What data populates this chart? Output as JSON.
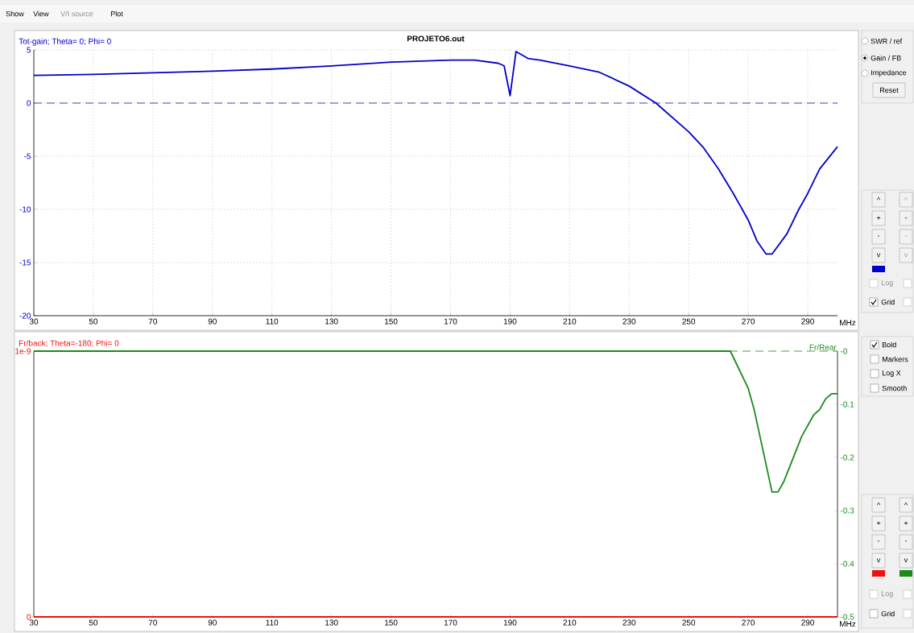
{
  "chart_data": [
    {
      "type": "line",
      "title": "PROJETO6.out",
      "ylabel": "Tot-gain; Theta= 0; Phi= 0",
      "xlabel": "MHz",
      "xlim": [
        30,
        300
      ],
      "xticks": [
        30,
        50,
        70,
        90,
        110,
        130,
        150,
        170,
        190,
        210,
        230,
        250,
        270,
        290
      ],
      "ylim": [
        -20,
        5
      ],
      "yticks": [
        -20,
        -15,
        -10,
        -5,
        0,
        5
      ],
      "grid": true,
      "series": [
        {
          "color": "#0000cc",
          "x": [
            30,
            50,
            70,
            90,
            110,
            130,
            150,
            170,
            178,
            186,
            188,
            190,
            192,
            196,
            200,
            210,
            220,
            230,
            239,
            250,
            255,
            260,
            265,
            270,
            273,
            276,
            278,
            283,
            287,
            290,
            294,
            300
          ],
          "values": [
            2.6,
            2.7,
            2.85,
            3.0,
            3.2,
            3.5,
            3.85,
            4.05,
            4.05,
            3.75,
            3.5,
            0.7,
            4.85,
            4.2,
            4.05,
            3.5,
            2.9,
            1.6,
            0,
            -2.7,
            -4.2,
            -6.2,
            -8.5,
            -11.0,
            -13.0,
            -14.2,
            -14.2,
            -12.3,
            -10.0,
            -8.5,
            -6.2,
            -4.1
          ]
        }
      ],
      "ref_lines": [
        {
          "axis": "y",
          "value": 0,
          "color": "#4444cc",
          "line_style": "dashed"
        }
      ]
    },
    {
      "type": "line",
      "ylabel": "Fr/back; Theta=-180; Phi= 0",
      "y2label": "Fr/Rear",
      "xlabel": "MHz",
      "xlim": [
        30,
        300
      ],
      "xticks": [
        30,
        50,
        70,
        90,
        110,
        130,
        150,
        170,
        190,
        210,
        230,
        250,
        270,
        290
      ],
      "ylim": [
        0,
        1e-09
      ],
      "yticks": [
        0,
        {
          "value": 1e-09,
          "label": "1e-9"
        }
      ],
      "y2lim": [
        -0.5,
        0
      ],
      "y2ticks": [
        -0.5,
        -0.4,
        -0.3,
        -0.2,
        -0.1,
        {
          "value": 0,
          "label": "-0"
        }
      ],
      "series": [
        {
          "color": "#1a8a1a",
          "axis": "y2",
          "x": [
            30,
            264,
            270,
            272,
            278,
            280,
            282,
            288,
            292,
            294,
            296,
            298,
            300
          ],
          "values": [
            0,
            0,
            -0.07,
            -0.11,
            -0.265,
            -0.265,
            -0.245,
            -0.16,
            -0.12,
            -0.11,
            -0.09,
            -0.08,
            -0.08
          ]
        },
        {
          "color": "#ee1111",
          "axis": "y",
          "x": [
            30,
            300
          ],
          "values": [
            0,
            0
          ]
        }
      ],
      "ref_lines": [
        {
          "axis": "y2",
          "value": 0,
          "color": "#4a9a4a",
          "line_style": "dashed"
        }
      ]
    },
    {
      "type": "other",
      "annotations": [
        "Show",
        "View",
        "V/I source",
        "Plot",
        "SWR / ref",
        "Gain / FB",
        "Impedance",
        "Reset",
        "^",
        "^",
        "+",
        "+",
        "-",
        "-",
        "v",
        "v",
        "Log",
        "Grid",
        "Bold",
        "Markers",
        "Log X",
        "Smooth",
        "^",
        "^",
        "+",
        "+",
        "-",
        "-",
        "v",
        "v",
        "Log",
        "Grid"
      ]
    }
  ]
}
